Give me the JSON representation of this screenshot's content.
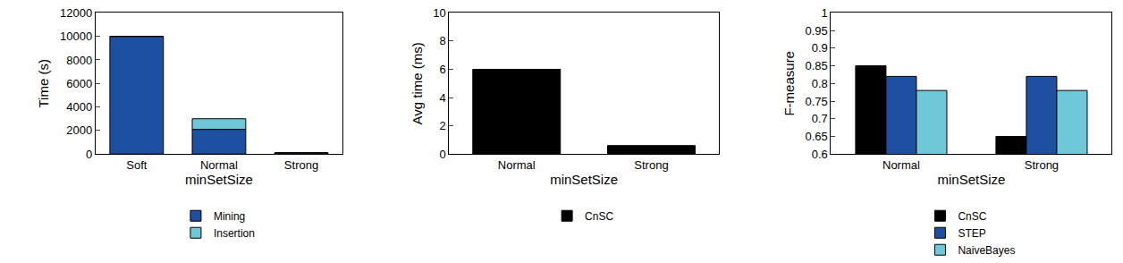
{
  "chart_data": [
    {
      "type": "bar",
      "stacked": true,
      "categories": [
        "Soft",
        "Normal",
        "Strong"
      ],
      "series": [
        {
          "name": "Mining",
          "color": "#1f4fa0",
          "values": [
            10000,
            2100,
            100
          ]
        },
        {
          "name": "Insertion",
          "color": "#6fc8d8",
          "values": [
            0,
            900,
            0
          ]
        }
      ],
      "xlabel": "minSetSize",
      "ylabel": "Time (s)",
      "ylim": [
        0,
        12000
      ],
      "yticks": [
        0,
        2000,
        4000,
        6000,
        8000,
        10000,
        12000
      ],
      "grid": false,
      "legend": "bottom"
    },
    {
      "type": "bar",
      "categories": [
        "Normal",
        "Strong"
      ],
      "series": [
        {
          "name": "CnSC",
          "color": "#000000",
          "values": [
            6,
            0.6
          ]
        }
      ],
      "xlabel": "minSetSize",
      "ylabel": "Avg time (ms)",
      "ylim": [
        0,
        10
      ],
      "yticks": [
        0,
        2,
        4,
        6,
        8,
        10
      ],
      "grid": false,
      "legend": "bottom"
    },
    {
      "type": "bar",
      "categories": [
        "Normal",
        "Strong"
      ],
      "series": [
        {
          "name": "CnSC",
          "color": "#000000",
          "values": [
            0.85,
            0.65
          ]
        },
        {
          "name": "STEP",
          "color": "#1f4fa0",
          "values": [
            0.82,
            0.82
          ]
        },
        {
          "name": "NaiveBayes",
          "color": "#6fc8d8",
          "values": [
            0.78,
            0.78
          ]
        }
      ],
      "xlabel": "minSetSize",
      "ylabel": "F-measure",
      "ylim": [
        0.6,
        1
      ],
      "yticks": [
        0.6,
        0.65,
        0.7,
        0.75,
        0.8,
        0.85,
        0.9,
        0.95,
        1
      ],
      "grid": false,
      "legend": "bottom"
    }
  ]
}
